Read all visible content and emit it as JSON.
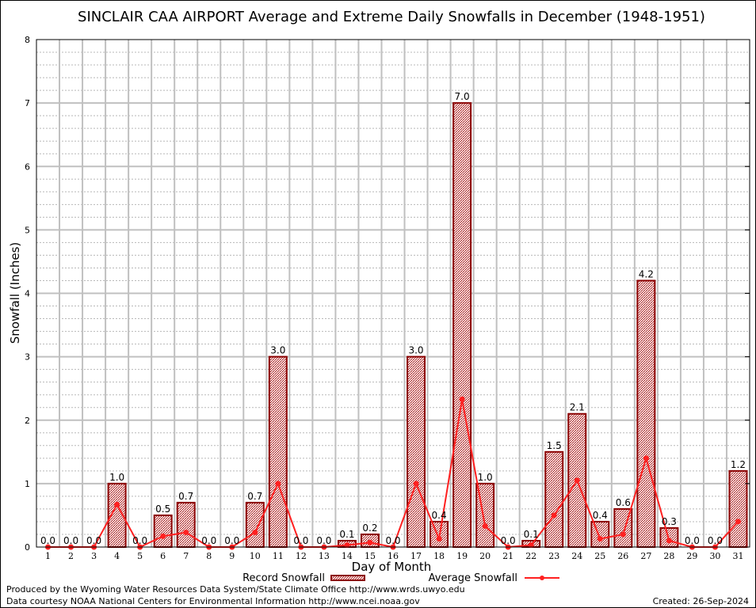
{
  "chart_data": {
    "type": "bar",
    "title": "SINCLAIR CAA AIRPORT Average and Extreme Daily Snowfalls in December (1948-1951)",
    "xlabel": "Day of Month",
    "ylabel": "Snowfall (Inches)",
    "ylim": [
      0,
      8
    ],
    "yticks": [
      "0",
      "1",
      "2",
      "3",
      "4",
      "5",
      "6",
      "7",
      "8"
    ],
    "categories": [
      "1",
      "2",
      "3",
      "4",
      "5",
      "6",
      "7",
      "8",
      "9",
      "10",
      "11",
      "12",
      "13",
      "14",
      "15",
      "16",
      "17",
      "18",
      "19",
      "20",
      "21",
      "22",
      "23",
      "24",
      "25",
      "26",
      "27",
      "28",
      "29",
      "30",
      "31"
    ],
    "series": [
      {
        "name": "Record Snowfall",
        "type": "bar",
        "values": [
          0,
          0,
          0,
          1.0,
          0,
          0.5,
          0.7,
          0,
          0,
          0.7,
          3.0,
          0,
          0,
          0.1,
          0.2,
          0,
          3.0,
          0.4,
          7.0,
          1.0,
          0,
          0.1,
          1.5,
          2.1,
          0.4,
          0.6,
          4.2,
          0.3,
          0,
          0,
          1.2
        ],
        "labels": [
          "0.0",
          "0.0",
          "0.0",
          "1.0",
          "0.0",
          "0.5",
          "0.7",
          "0.0",
          "0.0",
          "0.7",
          "3.0",
          "0.0",
          "0.0",
          "0.1",
          "0.2",
          "0.0",
          "3.0",
          "0.4",
          "7.0",
          "1.0",
          "0.0",
          "0.1",
          "1.5",
          "2.1",
          "0.4",
          "0.6",
          "4.2",
          "0.3",
          "0.0",
          "0.0",
          "1.2"
        ]
      },
      {
        "name": "Average Snowfall",
        "type": "line",
        "values": [
          0,
          0,
          0,
          0.67,
          0,
          0.17,
          0.23,
          0,
          0,
          0.23,
          1.0,
          0,
          0,
          0.03,
          0.07,
          0,
          1.0,
          0.13,
          2.33,
          0.33,
          0,
          0.03,
          0.5,
          1.05,
          0.13,
          0.2,
          1.4,
          0.1,
          0,
          0,
          0.4
        ]
      }
    ],
    "legend_position": "bottom",
    "grid": true,
    "colors": {
      "bar_fill": "#d9a0a0",
      "bar_edge": "#8b0000",
      "line": "#ff2020",
      "grid": "#c0c0c0"
    }
  },
  "footer": {
    "produced": "Produced by the Wyoming Water Resources Data System/State Climate Office http://www.wrds.uwyo.edu",
    "courtesy": "Data courtesy NOAA National Centers for Environmental Information http://www.ncei.noaa.gov",
    "created": "Created: 26-Sep-2024"
  }
}
